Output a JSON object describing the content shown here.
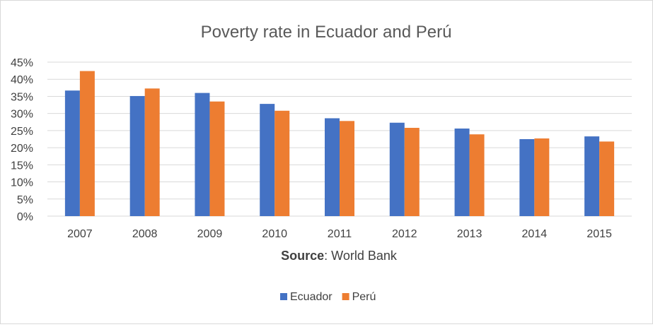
{
  "chart_data": {
    "type": "bar",
    "title": "Poverty rate in Ecuador and Perú",
    "xlabel_bold": "Source",
    "xlabel_rest": ": World Bank",
    "ylabel": "",
    "ylim": [
      0,
      45
    ],
    "y_step": 5,
    "y_tick_labels": [
      "0%",
      "5%",
      "10%",
      "15%",
      "20%",
      "25%",
      "30%",
      "35%",
      "40%",
      "45%"
    ],
    "grid": true,
    "legend_position": "bottom-center",
    "categories": [
      "2007",
      "2008",
      "2009",
      "2010",
      "2011",
      "2012",
      "2013",
      "2014",
      "2015"
    ],
    "series": [
      {
        "name": "Ecuador",
        "color": "#4472c4",
        "values": [
          36.7,
          35.1,
          36.0,
          32.8,
          28.6,
          27.3,
          25.6,
          22.5,
          23.3
        ]
      },
      {
        "name": "Perú",
        "color": "#ed7d31",
        "values": [
          42.4,
          37.3,
          33.5,
          30.8,
          27.8,
          25.8,
          23.9,
          22.7,
          21.8
        ]
      }
    ]
  }
}
